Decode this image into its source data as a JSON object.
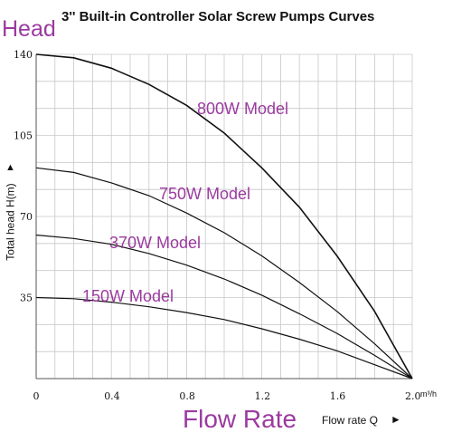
{
  "title": "3'' Built-in Controller Solar Screw Pumps Curves",
  "head_label": "Head",
  "flow_rate_label": "Flow Rate",
  "x_axis_label": "Flow rate Q",
  "x_axis_arrow": "►",
  "y_axis_label": "Total head H(m)",
  "y_axis_arrow": "▲",
  "x_unit": "m³/h",
  "colors": {
    "curve": "#111111",
    "grid": "#c8c8c8",
    "model_label": "#9b3aa0"
  },
  "chart_data": {
    "type": "line",
    "title": "3'' Built-in Controller Solar Screw Pumps Curves",
    "xlabel": "Flow rate Q",
    "ylabel": "Total head H(m)",
    "x_unit": "m³/h",
    "xlim": [
      0,
      2.0
    ],
    "ylim": [
      0,
      140
    ],
    "x_ticks": [
      "0",
      "0.4",
      "0.8",
      "1.2",
      "1.6",
      "2.0"
    ],
    "x_tick_values": [
      0,
      0.4,
      0.8,
      1.2,
      1.6,
      2.0
    ],
    "y_ticks": [
      "35",
      "70",
      "105",
      "140"
    ],
    "y_tick_values": [
      35,
      70,
      105,
      140
    ],
    "grid": true,
    "series": [
      {
        "name": "800W Model",
        "x": [
          0,
          0.2,
          0.4,
          0.6,
          0.8,
          1.0,
          1.2,
          1.4,
          1.6,
          1.8,
          2.0
        ],
        "y": [
          140,
          138.5,
          134,
          127,
          118,
          106,
          91,
          74,
          53,
          29,
          0
        ]
      },
      {
        "name": "750W Model",
        "x": [
          0,
          0.2,
          0.4,
          0.6,
          0.8,
          1.0,
          1.2,
          1.4,
          1.6,
          1.8,
          2.0
        ],
        "y": [
          91,
          89,
          84.5,
          79,
          71.5,
          63,
          53,
          41.5,
          29,
          15,
          0
        ]
      },
      {
        "name": "370W Model",
        "x": [
          0,
          0.2,
          0.4,
          0.6,
          0.8,
          1.0,
          1.2,
          1.4,
          1.6,
          1.8,
          2.0
        ],
        "y": [
          62,
          60.5,
          58,
          54,
          49,
          43,
          36,
          28,
          19.5,
          10,
          0
        ]
      },
      {
        "name": "150W Model",
        "x": [
          0,
          0.2,
          0.4,
          0.6,
          0.8,
          1.0,
          1.2,
          1.4,
          1.6,
          1.8,
          2.0
        ],
        "y": [
          35,
          34.5,
          33,
          31,
          28.5,
          25.5,
          21.5,
          17,
          12,
          6,
          0
        ]
      }
    ]
  }
}
